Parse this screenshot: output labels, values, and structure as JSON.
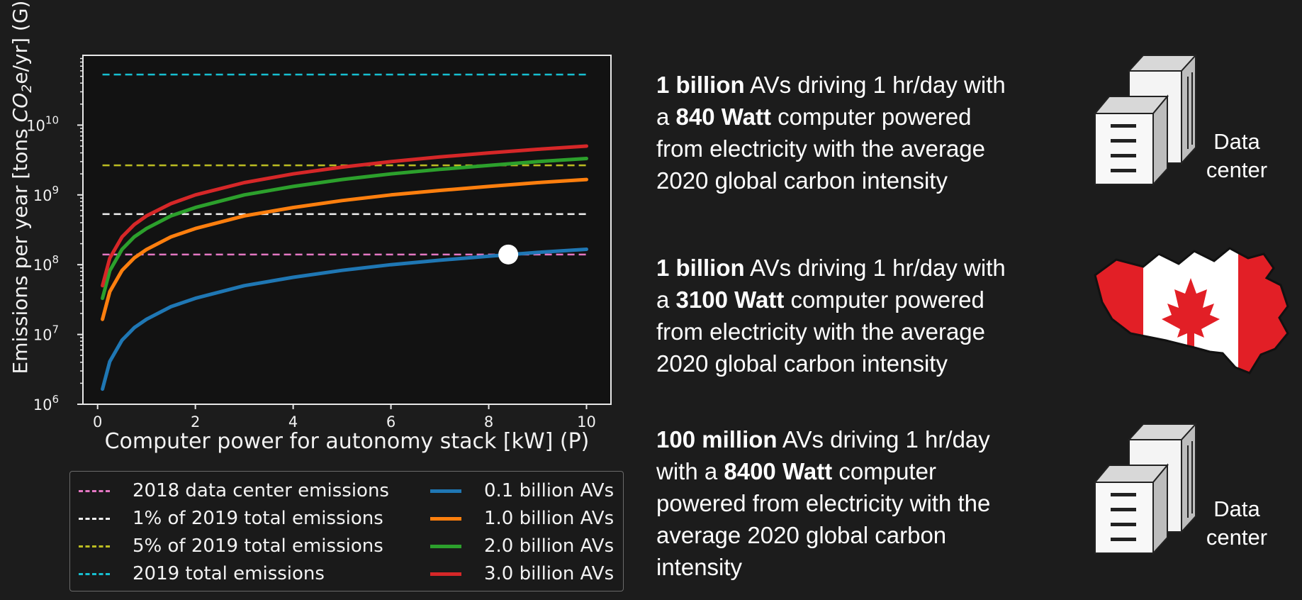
{
  "chart_data": {
    "type": "line",
    "xlabel": "Computer power for autonomy stack [kW] (P)",
    "ylabel_prefix": "Emissions per year [tons ",
    "ylabel_formula_main": "CO",
    "ylabel_formula_sub": "2",
    "ylabel_suffix": "e/yr] (G)",
    "xlim": [
      -0.3,
      10.5
    ],
    "ylim": [
      1000000,
      100000000000
    ],
    "yscale": "log",
    "xticks": [
      0,
      2,
      4,
      6,
      8,
      10
    ],
    "xtick_labels": [
      "0",
      "2",
      "4",
      "6",
      "8",
      "10"
    ],
    "yticks": [
      1000000,
      10000000,
      100000000,
      1000000000,
      10000000000
    ],
    "ytick_bases": [
      "10",
      "10",
      "10",
      "10",
      "10"
    ],
    "ytick_exponents": [
      "6",
      "7",
      "8",
      "9",
      "10"
    ],
    "reference_lines": [
      {
        "name": "2018 data center emissions",
        "value": 140000000,
        "color": "#e377c2"
      },
      {
        "name": "1% of 2019 total emissions",
        "value": 530000000,
        "color": "#f0f0f0"
      },
      {
        "name": "5% of 2019 total emissions",
        "value": 2650000000,
        "color": "#bcbd22"
      },
      {
        "name": "2019 total emissions",
        "value": 53000000000,
        "color": "#17becf"
      }
    ],
    "x": [
      0.1,
      0.25,
      0.5,
      0.75,
      1,
      1.5,
      2,
      3,
      4,
      5,
      6,
      7,
      8,
      9,
      10
    ],
    "series": [
      {
        "name": "0.1 billion AVs",
        "color": "#1f77b4",
        "values": [
          1650000,
          4100000,
          8300000,
          12500000,
          16500000,
          25000000,
          33000000,
          50000000,
          66000000,
          83000000,
          100000000,
          116000000,
          132000000,
          150000000,
          166000000
        ]
      },
      {
        "name": "1.0 billion AVs",
        "color": "#ff7f0e",
        "values": [
          16500000,
          41000000,
          83000000,
          125000000,
          165000000,
          250000000,
          330000000,
          500000000,
          660000000,
          830000000,
          1000000000,
          1160000000,
          1320000000,
          1500000000,
          1660000000
        ]
      },
      {
        "name": "2.0 billion AVs",
        "color": "#2ca02c",
        "values": [
          33000000,
          82000000,
          166000000,
          250000000,
          330000000,
          500000000,
          660000000,
          1000000000,
          1320000000,
          1660000000,
          2000000000,
          2320000000,
          2640000000,
          3000000000,
          3320000000
        ]
      },
      {
        "name": "3.0 billion AVs",
        "color": "#d62728",
        "values": [
          50000000,
          124000000,
          250000000,
          375000000,
          500000000,
          750000000,
          1000000000,
          1500000000,
          2000000000,
          2500000000,
          3000000000,
          3500000000,
          4000000000,
          4500000000,
          5000000000
        ]
      }
    ],
    "marker": {
      "x": 8.4,
      "y": 140000000,
      "color": "#ffffff"
    }
  },
  "scenarios": [
    {
      "line1_bold": "1 billion",
      "line1_rest": " AVs driving 1 hr/day with",
      "line2_pre": "a ",
      "line2_bold": "840 Watt",
      "line2_rest": " computer powered",
      "line3": "from electricity with the average",
      "line4": "2020 global carbon intensity",
      "icon": "data-center-icon",
      "icon_label_1": "Data",
      "icon_label_2": "center"
    },
    {
      "line1_bold": "1 billion",
      "line1_rest": " AVs driving 1 hr/day with",
      "line2_pre": "a ",
      "line2_bold": "3100 Watt",
      "line2_rest": " computer powered",
      "line3": "from electricity with the average",
      "line4": "2020 global carbon intensity",
      "icon": "canada-flag-map-icon"
    },
    {
      "line1_bold": "100 million",
      "line1_rest": " AVs driving 1 hr/day",
      "line2_pre": "with a ",
      "line2_bold": "8400 Watt",
      "line2_rest": " computer",
      "line3": "powered from electricity with the",
      "line4": "average 2020 global carbon",
      "line5": "intensity",
      "icon": "data-center-icon",
      "icon_label_1": "Data",
      "icon_label_2": "center"
    }
  ]
}
